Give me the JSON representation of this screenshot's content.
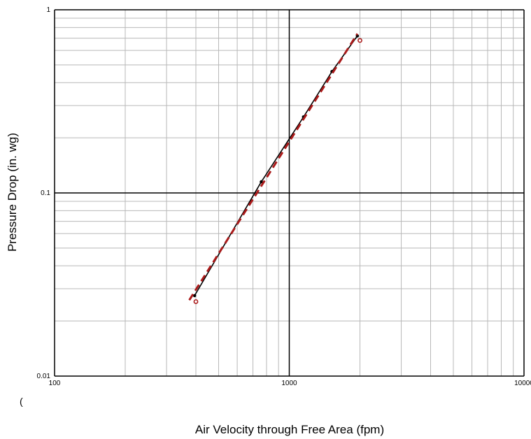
{
  "chart_data": {
    "type": "line",
    "xlabel": "Air Velocity through Free Area (fpm)",
    "ylabel": "Pressure Drop (in. wg)",
    "x_scale": "log",
    "y_scale": "log",
    "xlim": [
      100,
      10000
    ],
    "ylim": [
      0.01,
      1
    ],
    "x_tick_labels": [
      "100",
      "1000",
      "10000"
    ],
    "y_tick_labels": [
      "0.01",
      "0.1",
      "1"
    ],
    "grid": true,
    "legend": "none",
    "series": [
      {
        "style": "solid",
        "color": "#000000",
        "markers": "filled-circle",
        "x": [
          395,
          760,
          1150,
          1520,
          1950
        ],
        "y": [
          0.0275,
          0.115,
          0.26,
          0.46,
          0.72
        ]
      },
      {
        "style": "dashed",
        "color": "#aa1a1a",
        "markers": "open-circle",
        "x": [
          400,
          2000
        ],
        "y": [
          0.0255,
          0.68
        ],
        "line_x": [
          375,
          1950
        ],
        "line_y": [
          0.026,
          0.74
        ]
      }
    ]
  },
  "stray_mark": "("
}
